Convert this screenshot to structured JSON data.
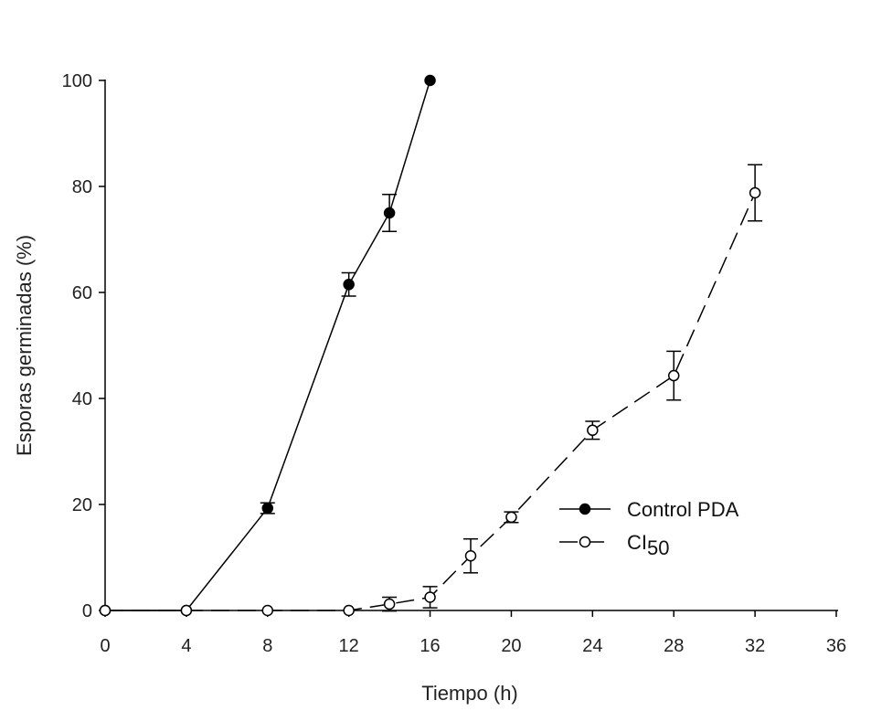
{
  "chart_data": {
    "type": "line",
    "title": "",
    "xlabel": "Tiempo (h)",
    "ylabel": "Esporas germinadas (%)",
    "xlim": [
      0,
      36
    ],
    "ylim": [
      0,
      100
    ],
    "xticks": [
      0,
      4,
      8,
      12,
      16,
      20,
      24,
      28,
      32,
      36
    ],
    "yticks": [
      0,
      20,
      40,
      60,
      80,
      100
    ],
    "grid": false,
    "legend_position": "center-right",
    "series": [
      {
        "name": "Control PDA",
        "legend_label": "Control PDA",
        "marker": "filled-circle",
        "line_style": "solid",
        "color": "#000000",
        "x": [
          0,
          4,
          8,
          12,
          14,
          16
        ],
        "y": [
          0,
          0,
          19.3,
          61.5,
          75,
          100
        ],
        "err": [
          0,
          0,
          1,
          2.2,
          3.5,
          0
        ]
      },
      {
        "name": "CI50",
        "legend_label": "CI",
        "legend_subscript": "50",
        "marker": "open-circle",
        "line_style": "dashed",
        "color": "#000000",
        "x": [
          0,
          4,
          8,
          12,
          14,
          16,
          18,
          20,
          24,
          28,
          32
        ],
        "y": [
          0,
          0,
          0,
          0,
          1.2,
          2.5,
          10.3,
          17.6,
          34,
          44.3,
          78.8
        ],
        "err": [
          0,
          0,
          0,
          0,
          1.3,
          2,
          3.2,
          1,
          1.7,
          4.6,
          5.3
        ]
      }
    ]
  }
}
